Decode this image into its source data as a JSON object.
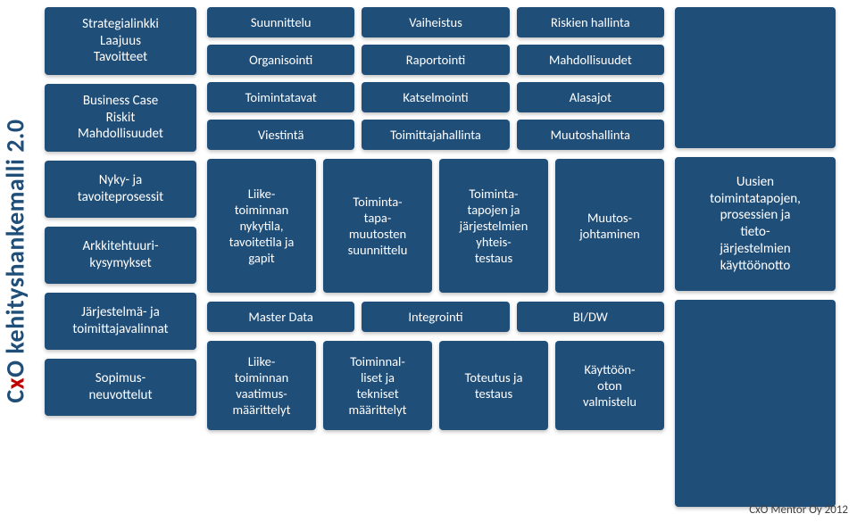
{
  "theme": {
    "box_bg": "#1f4e79",
    "box_fg": "#ffffff",
    "accent_red": "#c00000",
    "page_bg": "#ffffff",
    "font_family": "Segoe UI",
    "title_fontsize": 28,
    "box_fontsize": 15,
    "box_radius": 4
  },
  "vtitle": {
    "full": "CxO kehityshankemalli 2.0",
    "c": "C",
    "x": "x",
    "o": "O",
    "rest": " kehityshankemalli 2.0"
  },
  "left": {
    "box1_l1": "Strategialinkki",
    "box1_l2": "Laajuus",
    "box1_l3": "Tavoitteet",
    "box2_l1": "Business Case",
    "box2_l2": "Riskit",
    "box2_l3": "Mahdollisuudet",
    "box3_l1": "Nyky- ja",
    "box3_l2": "tavoiteprosessit",
    "box4_l1": "Arkkitehtuuri-",
    "box4_l2": "kysymykset",
    "box5_l1": "Järjestelmä- ja",
    "box5_l2": "toimittajavalinnat",
    "box6_l1": "Sopimus-",
    "box6_l2": "neuvottelut"
  },
  "midTop": {
    "r1c1": "Suunnittelu",
    "r1c2": "Vaiheistus",
    "r1c3": "Riskien hallinta",
    "r2c1": "Organisointi",
    "r2c2": "Raportointi",
    "r2c3": "Mahdollisuudet",
    "r3c1": "Toimintatavat",
    "r3c2": "Katselmointi",
    "r3c3": "Alasajot",
    "r4c1": "Viestintä",
    "r4c2": "Toimittajahallinta",
    "r4c3": "Muutoshallinta"
  },
  "midRow4": {
    "b1_l1": "Liike-",
    "b1_l2": "toiminnan",
    "b1_l3": "nykytila,",
    "b1_l4": "tavoitetila ja",
    "b1_l5": "gapit",
    "b2_l1": "Toiminta-",
    "b2_l2": "tapa-",
    "b2_l3": "muutosten",
    "b2_l4": "suunnittelu",
    "b3_l1": "Toiminta-",
    "b3_l2": "tapojen ja",
    "b3_l3": "järjestelmien",
    "b3_l4": "yhteis-",
    "b3_l5": "testaus",
    "b4_l1": "Muutos-",
    "b4_l2": "johtaminen"
  },
  "midRow3": {
    "c1": "Master Data",
    "c2": "Integrointi",
    "c3": "BI/DW"
  },
  "midRow4b": {
    "b1_l1": "Liike-",
    "b1_l2": "toiminnan",
    "b1_l3": "vaatimus-",
    "b1_l4": "määrittelyt",
    "b2_l1": "Toiminnal-",
    "b2_l2": "liset ja",
    "b2_l3": "tekniset",
    "b2_l4": "määrittelyt",
    "b3_l1": "Toteutus ja",
    "b3_l2": "testaus",
    "b4_l1": "Käyttöön-",
    "b4_l2": "oton",
    "b4_l3": "valmistelu"
  },
  "right": {
    "mid_l1": "Uusien",
    "mid_l2": "toimintatapojen,",
    "mid_l3": "prosessien ja",
    "mid_l4": "tieto-",
    "mid_l5": "järjestelmien",
    "mid_l6": "käyttöönotto"
  },
  "footer": "CxO Mentor Oy 2012"
}
